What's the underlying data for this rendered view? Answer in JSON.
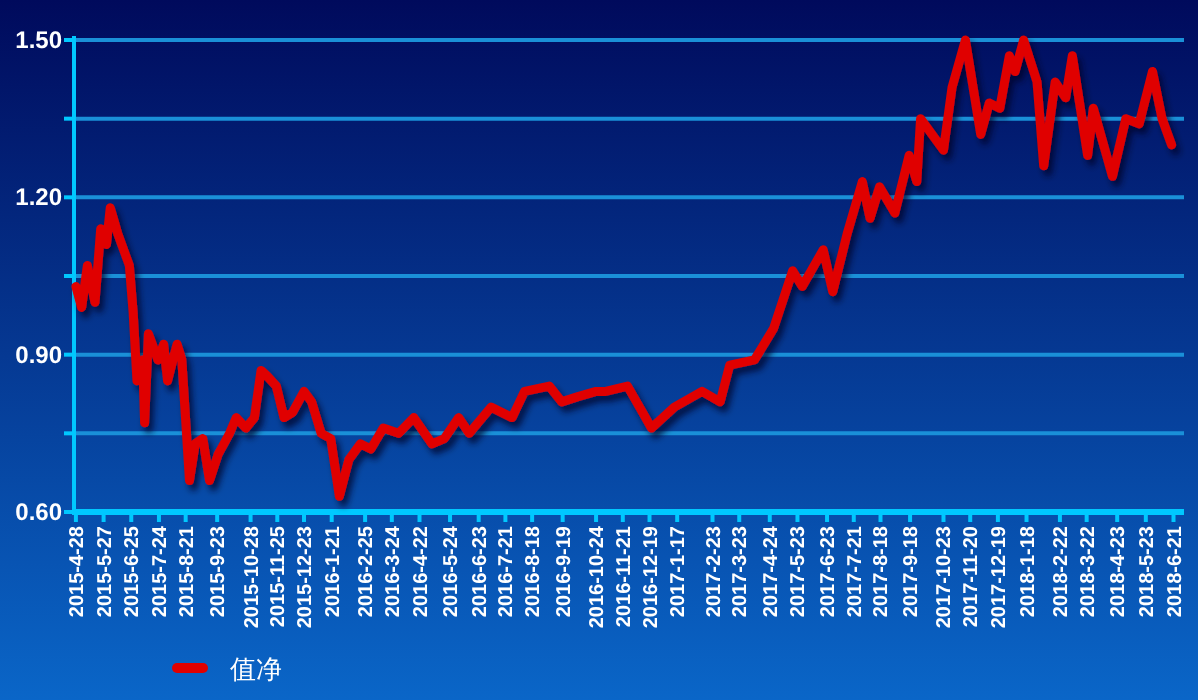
{
  "chart_data": {
    "type": "line",
    "x": [
      "2015-04-28",
      "2015-05-04",
      "2015-05-10",
      "2015-05-18",
      "2015-05-24",
      "2015-05-30",
      "2015-06-03",
      "2015-06-11",
      "2015-06-23",
      "2015-06-27",
      "2015-07-01",
      "2015-07-07",
      "2015-07-09",
      "2015-07-13",
      "2015-07-23",
      "2015-07-29",
      "2015-08-02",
      "2015-08-12",
      "2015-08-17",
      "2015-08-25",
      "2015-08-31",
      "2015-09-08",
      "2015-09-15",
      "2015-09-24",
      "2015-10-06",
      "2015-10-13",
      "2015-10-23",
      "2015-11-01",
      "2015-11-08",
      "2015-11-14",
      "2015-11-24",
      "2015-12-02",
      "2015-12-11",
      "2015-12-23",
      "2015-12-31",
      "2016-01-10",
      "2016-01-20",
      "2016-01-29",
      "2016-02-08",
      "2016-02-20",
      "2016-03-02",
      "2016-03-15",
      "2016-03-31",
      "2016-04-16",
      "2016-05-05",
      "2016-05-18",
      "2016-06-02",
      "2016-06-13",
      "2016-07-06",
      "2016-07-28",
      "2016-08-10",
      "2016-09-05",
      "2016-09-18",
      "2016-10-05",
      "2016-10-24",
      "2016-11-03",
      "2016-11-26",
      "2016-12-21",
      "2017-01-14",
      "2017-02-12",
      "2017-03-03",
      "2017-03-13",
      "2017-04-08",
      "2017-04-28",
      "2017-05-18",
      "2017-05-28",
      "2017-06-19",
      "2017-06-29",
      "2017-07-14",
      "2017-07-30",
      "2017-08-07",
      "2017-08-17",
      "2017-09-02",
      "2017-09-17",
      "2017-09-25",
      "2017-09-29",
      "2017-10-23",
      "2017-11-01",
      "2017-11-15",
      "2017-12-01",
      "2017-12-10",
      "2017-12-21",
      "2017-12-31",
      "2018-01-06",
      "2018-01-15",
      "2018-01-29",
      "2018-02-05",
      "2018-02-17",
      "2018-02-28",
      "2018-03-07",
      "2018-03-23",
      "2018-03-29",
      "2018-04-18",
      "2018-05-02",
      "2018-05-16",
      "2018-05-30",
      "2018-06-09",
      "2018-06-19"
    ],
    "series": [
      {
        "name": "值净",
        "color": "#e00000",
        "values": [
          1.03,
          0.99,
          1.07,
          1.0,
          1.14,
          1.11,
          1.18,
          1.13,
          1.07,
          0.98,
          0.85,
          0.89,
          0.77,
          0.94,
          0.89,
          0.92,
          0.85,
          0.92,
          0.89,
          0.66,
          0.73,
          0.74,
          0.66,
          0.71,
          0.75,
          0.78,
          0.76,
          0.78,
          0.87,
          0.86,
          0.84,
          0.78,
          0.79,
          0.83,
          0.81,
          0.75,
          0.74,
          0.63,
          0.7,
          0.73,
          0.72,
          0.76,
          0.75,
          0.78,
          0.73,
          0.74,
          0.78,
          0.75,
          0.8,
          0.78,
          0.83,
          0.84,
          0.81,
          0.82,
          0.83,
          0.83,
          0.84,
          0.76,
          0.8,
          0.83,
          0.81,
          0.88,
          0.89,
          0.95,
          1.06,
          1.03,
          1.1,
          1.02,
          1.13,
          1.23,
          1.16,
          1.22,
          1.17,
          1.28,
          1.23,
          1.35,
          1.29,
          1.41,
          1.5,
          1.32,
          1.38,
          1.37,
          1.47,
          1.44,
          1.5,
          1.42,
          1.26,
          1.42,
          1.39,
          1.47,
          1.28,
          1.37,
          1.24,
          1.35,
          1.34,
          1.44,
          1.35,
          1.3
        ]
      }
    ],
    "xlim": [
      "2015-04-26",
      "2018-07-02"
    ],
    "xticks": [
      {
        "value": "2015-04-28",
        "label": "2015-4-28"
      },
      {
        "value": "2015-05-27",
        "label": "2015-5-27"
      },
      {
        "value": "2015-06-25",
        "label": "2015-6-25"
      },
      {
        "value": "2015-07-24",
        "label": "2015-7-24"
      },
      {
        "value": "2015-08-21",
        "label": "2015-8-21"
      },
      {
        "value": "2015-09-23",
        "label": "2015-9-23"
      },
      {
        "value": "2015-10-28",
        "label": "2015-10-28"
      },
      {
        "value": "2015-11-25",
        "label": "2015-11-25"
      },
      {
        "value": "2015-12-23",
        "label": "2015-12-23"
      },
      {
        "value": "2016-01-21",
        "label": "2016-1-21"
      },
      {
        "value": "2016-02-25",
        "label": "2016-2-25"
      },
      {
        "value": "2016-03-24",
        "label": "2016-3-24"
      },
      {
        "value": "2016-04-22",
        "label": "2016-4-22"
      },
      {
        "value": "2016-05-24",
        "label": "2016-5-24"
      },
      {
        "value": "2016-06-23",
        "label": "2016-6-23"
      },
      {
        "value": "2016-07-21",
        "label": "2016-7-21"
      },
      {
        "value": "2016-08-18",
        "label": "2016-8-18"
      },
      {
        "value": "2016-09-19",
        "label": "2016-9-19"
      },
      {
        "value": "2016-10-24",
        "label": "2016-10-24"
      },
      {
        "value": "2016-11-21",
        "label": "2016-11-21"
      },
      {
        "value": "2016-12-19",
        "label": "2016-12-19"
      },
      {
        "value": "2017-01-17",
        "label": "2017-1-17"
      },
      {
        "value": "2017-02-23",
        "label": "2017-2-23"
      },
      {
        "value": "2017-03-23",
        "label": "2017-3-23"
      },
      {
        "value": "2017-04-24",
        "label": "2017-4-24"
      },
      {
        "value": "2017-05-23",
        "label": "2017-5-23"
      },
      {
        "value": "2017-06-23",
        "label": "2017-6-23"
      },
      {
        "value": "2017-07-21",
        "label": "2017-7-21"
      },
      {
        "value": "2017-08-18",
        "label": "2017-8-18"
      },
      {
        "value": "2017-09-18",
        "label": "2017-9-18"
      },
      {
        "value": "2017-10-23",
        "label": "2017-10-23"
      },
      {
        "value": "2017-11-20",
        "label": "2017-11-20"
      },
      {
        "value": "2017-12-19",
        "label": "2017-12-19"
      },
      {
        "value": "2018-01-18",
        "label": "2018-1-18"
      },
      {
        "value": "2018-02-22",
        "label": "2018-2-22"
      },
      {
        "value": "2018-03-22",
        "label": "2018-3-22"
      },
      {
        "value": "2018-04-23",
        "label": "2018-4-23"
      },
      {
        "value": "2018-05-23",
        "label": "2018-5-23"
      },
      {
        "value": "2018-06-21",
        "label": "2018-6-21"
      }
    ],
    "ylim": [
      0.6,
      1.5
    ],
    "yticks": [
      {
        "value": 0.6,
        "label": "0.60"
      },
      {
        "value": 0.75,
        "label": null
      },
      {
        "value": 0.9,
        "label": "0.90"
      },
      {
        "value": 1.05,
        "label": null
      },
      {
        "value": 1.2,
        "label": "1.20"
      },
      {
        "value": 1.35,
        "label": null
      },
      {
        "value": 1.5,
        "label": "1.50"
      }
    ],
    "grid": "y",
    "legend": "bottom left",
    "line_style": "solid",
    "marker": "none"
  }
}
